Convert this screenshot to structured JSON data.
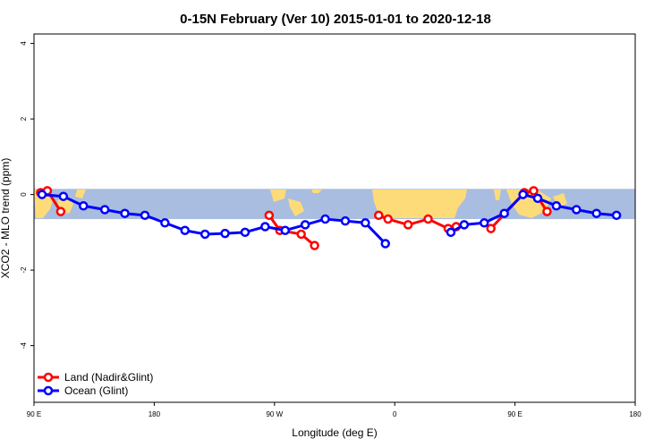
{
  "chart_data": {
    "type": "line",
    "title": "0-15N February (Ver 10)   2015-01-01 to 2020-12-18",
    "xlabel": "Longitude (deg E)",
    "ylabel": "XCO2 - MLO trend (ppm)",
    "xlim": [
      90,
      450
    ],
    "ylim": [
      -5.5,
      4.25
    ],
    "xticks": [
      90,
      180,
      270,
      360,
      450
    ],
    "xtick_labels": [
      "90 E",
      "180",
      "90 W",
      "0",
      "90 E",
      "180"
    ],
    "xtick_values": [
      90,
      180,
      270,
      360,
      450,
      540
    ],
    "yticks": [
      -4,
      -2,
      0,
      2,
      4
    ],
    "ytick_labels": [
      "-4",
      "-2",
      "0",
      "2",
      "4"
    ],
    "band": {
      "y_min": -0.65,
      "y_max": 0.15,
      "color": "#a9bde0",
      "land_color": "#fddb78"
    },
    "legend_position": "bottom-left",
    "series": [
      {
        "name": "Land (Nadir&Glint)",
        "color": "#ff0000",
        "segments": [
          {
            "x": [
              95,
              100,
              110
            ],
            "y": [
              0.05,
              0.1,
              -0.45
            ]
          },
          {
            "x": [
              266,
              274,
              290,
              300
            ],
            "y": [
              -0.55,
              -0.95,
              -1.05,
              -1.35
            ]
          },
          {
            "x": [
              348,
              355,
              370,
              385,
              400,
              406
            ],
            "y": [
              -0.55,
              -0.65,
              -0.8,
              -0.65,
              -0.9,
              -0.85
            ]
          },
          {
            "x": [
              432,
              457,
              464,
              474
            ],
            "y": [
              -0.9,
              0.05,
              0.1,
              -0.45
            ]
          }
        ]
      },
      {
        "name": "Ocean (Glint)",
        "color": "#0000ff",
        "segments": [
          {
            "x": [
              96,
              112,
              127,
              143,
              158,
              173,
              188,
              203,
              218,
              233,
              248,
              263,
              278,
              293,
              308,
              323,
              338,
              353
            ],
            "y": [
              0.0,
              -0.05,
              -0.3,
              -0.4,
              -0.5,
              -0.55,
              -0.75,
              -0.95,
              -1.05,
              -1.03,
              -1.0,
              -0.85,
              -0.95,
              -0.8,
              -0.65,
              -0.7,
              -0.75,
              -1.3
            ]
          },
          {
            "x": [
              402,
              412,
              427,
              442,
              456,
              467,
              481,
              496,
              511,
              526
            ],
            "y": [
              -1.0,
              -0.8,
              -0.75,
              -0.5,
              0.0,
              -0.1,
              -0.3,
              -0.4,
              -0.5,
              -0.55
            ]
          }
        ]
      }
    ]
  }
}
